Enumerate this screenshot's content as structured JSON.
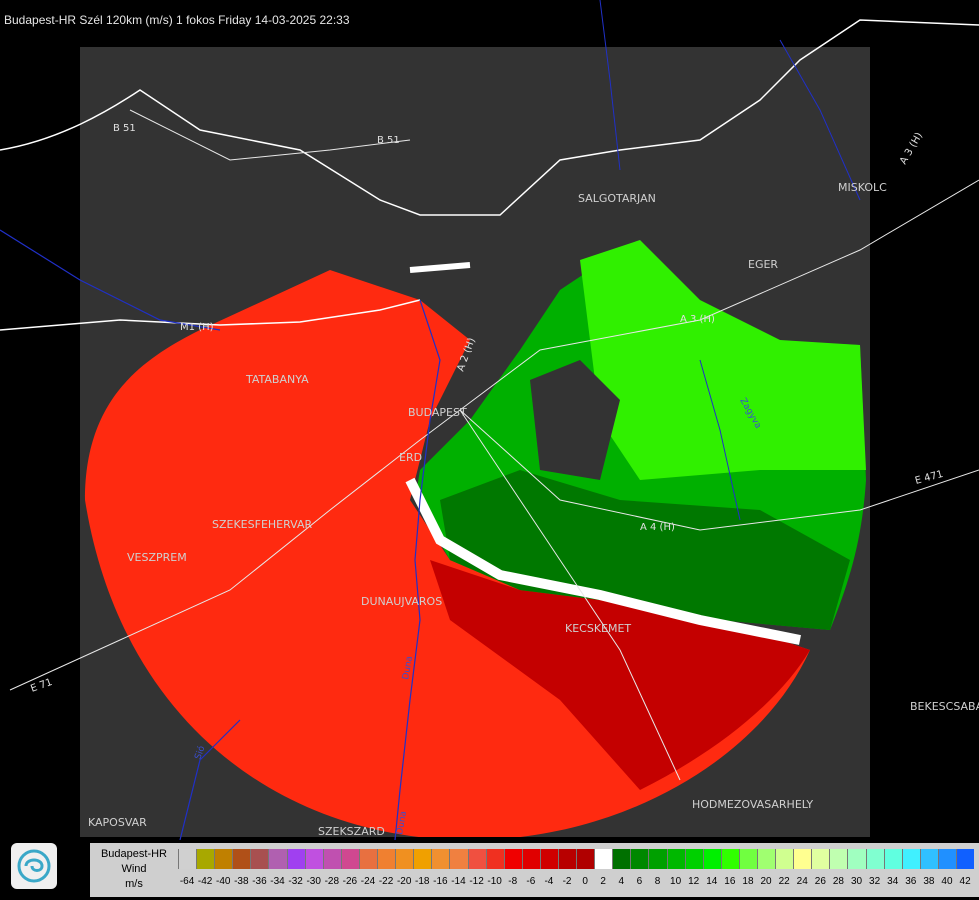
{
  "title": "Budapest-HR Szél 120km (m/s) 1 fokos Friday 14-03-2025 22:33",
  "map": {
    "cities": [
      "SALGOTARJAN",
      "MISKOLC",
      "EGER",
      "TATABANYA",
      "BUDAPEST",
      "ERD",
      "SZEKESFEHERVAR",
      "VESZPREM",
      "DUNAUJVAROS",
      "KECSKEMET",
      "BEKESCSABA",
      "HODMEZOVASARHELY",
      "KAPOSVAR",
      "SZEKSZARD"
    ],
    "roads": [
      "B 51",
      "B 51",
      "A 3 (H)",
      "A 3 (H)",
      "A 4 (H)",
      "E 71",
      "E 471",
      "M1 (H)",
      "A 2 (H)"
    ],
    "rivers": [
      "Duna",
      "Duna",
      "Sió",
      "Zagyva"
    ]
  },
  "legend": {
    "station": "Budapest-HR",
    "quantity": "Wind",
    "unit": "m/s",
    "colors": [
      "#d0d0d0",
      "#a8a800",
      "#c08000",
      "#b05018",
      "#a85050",
      "#b060b0",
      "#a040f0",
      "#c050e0",
      "#c050b0",
      "#d04890",
      "#e87040",
      "#f08030",
      "#f09020",
      "#f0a000",
      "#f09030",
      "#f08040",
      "#f05040",
      "#f03020",
      "#f00000",
      "#e00000",
      "#d00000",
      "#b80000",
      "#b00000",
      "#ffffff",
      "#007000",
      "#008800",
      "#00a000",
      "#00b800",
      "#00d000",
      "#00f000",
      "#30ff00",
      "#70ff40",
      "#a0ff70",
      "#d0ff90",
      "#ffff90",
      "#e0ffa0",
      "#c0ffb0",
      "#a0ffc0",
      "#80ffd0",
      "#60ffe0",
      "#40f0ff",
      "#30c0ff",
      "#2090ff",
      "#1060ff",
      "#0030ff",
      "#0000ff"
    ],
    "ticks": [
      "-64",
      "-42",
      "-40",
      "-38",
      "-36",
      "-34",
      "-32",
      "-30",
      "-28",
      "-26",
      "-24",
      "-22",
      "-20",
      "-18",
      "-16",
      "-14",
      "-12",
      "-10",
      "-8",
      "-6",
      "-4",
      "-2",
      "0",
      "2",
      "4",
      "6",
      "8",
      "10",
      "12",
      "14",
      "16",
      "18",
      "20",
      "22",
      "24",
      "26",
      "28",
      "30",
      "32",
      "34",
      "36",
      "38",
      "40",
      "42"
    ]
  }
}
